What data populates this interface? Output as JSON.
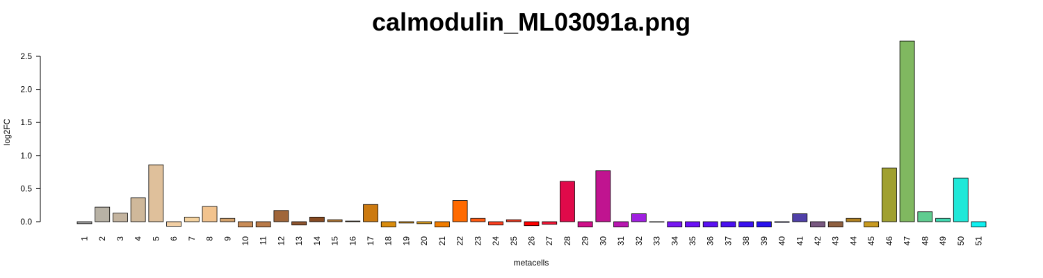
{
  "chart_data": {
    "type": "bar",
    "title": "calmodulin_ML03091a.png",
    "xlabel": "metacells",
    "ylabel": "log2FC",
    "ylim": [
      -0.08,
      2.75
    ],
    "yticks": [
      "0.0",
      "0.5",
      "1.0",
      "1.5",
      "2.0",
      "2.5"
    ],
    "grid": false,
    "categories": [
      "1",
      "2",
      "3",
      "4",
      "5",
      "6",
      "7",
      "8",
      "9",
      "10",
      "11",
      "12",
      "13",
      "14",
      "15",
      "16",
      "17",
      "18",
      "19",
      "20",
      "21",
      "22",
      "23",
      "24",
      "25",
      "26",
      "27",
      "28",
      "29",
      "30",
      "31",
      "32",
      "33",
      "34",
      "35",
      "36",
      "37",
      "38",
      "39",
      "40",
      "41",
      "42",
      "43",
      "44",
      "45",
      "46",
      "47",
      "48",
      "49",
      "50",
      "51"
    ],
    "values": [
      -0.03,
      0.22,
      0.13,
      0.36,
      0.86,
      -0.07,
      0.07,
      0.23,
      0.05,
      -0.08,
      -0.08,
      0.17,
      -0.05,
      0.07,
      0.03,
      0.01,
      0.26,
      -0.08,
      -0.02,
      -0.03,
      -0.08,
      0.32,
      0.05,
      -0.05,
      0.03,
      -0.06,
      -0.04,
      0.61,
      -0.08,
      0.77,
      -0.08,
      0.12,
      0.0,
      -0.08,
      -0.08,
      -0.08,
      -0.08,
      -0.08,
      -0.08,
      -0.01,
      0.12,
      -0.08,
      -0.08,
      0.05,
      -0.08,
      0.81,
      2.73,
      0.15,
      0.05,
      0.66,
      -0.08
    ],
    "colors": [
      "#A5A5A5",
      "#B8B2A5",
      "#C4B49F",
      "#CFB89A",
      "#DFC09B",
      "#F2CFA4",
      "#F5D3A0",
      "#F2C38E",
      "#D4A26B",
      "#C98C57",
      "#B97A48",
      "#A0663A",
      "#8F5630",
      "#864A22",
      "#B57A36",
      "#C49A5A",
      "#CC7A10",
      "#D98C0E",
      "#E09A20",
      "#E5A520",
      "#F07C00",
      "#FF6A00",
      "#FF5A10",
      "#FF4020",
      "#F03A20",
      "#FF0000",
      "#F51535",
      "#E00A4A",
      "#D0108A",
      "#C01490",
      "#B818B0",
      "#A020E0",
      "#8C20F0",
      "#7818F2",
      "#6A10F5",
      "#5A10F2",
      "#4A10F0",
      "#3A10F0",
      "#2810EE",
      "#0A10D0",
      "#5040A8",
      "#785880",
      "#8F6040",
      "#B08020",
      "#C89A20",
      "#A0A030",
      "#80B860",
      "#60CC90",
      "#40D8B0",
      "#20E8D8",
      "#10F0F0"
    ]
  }
}
